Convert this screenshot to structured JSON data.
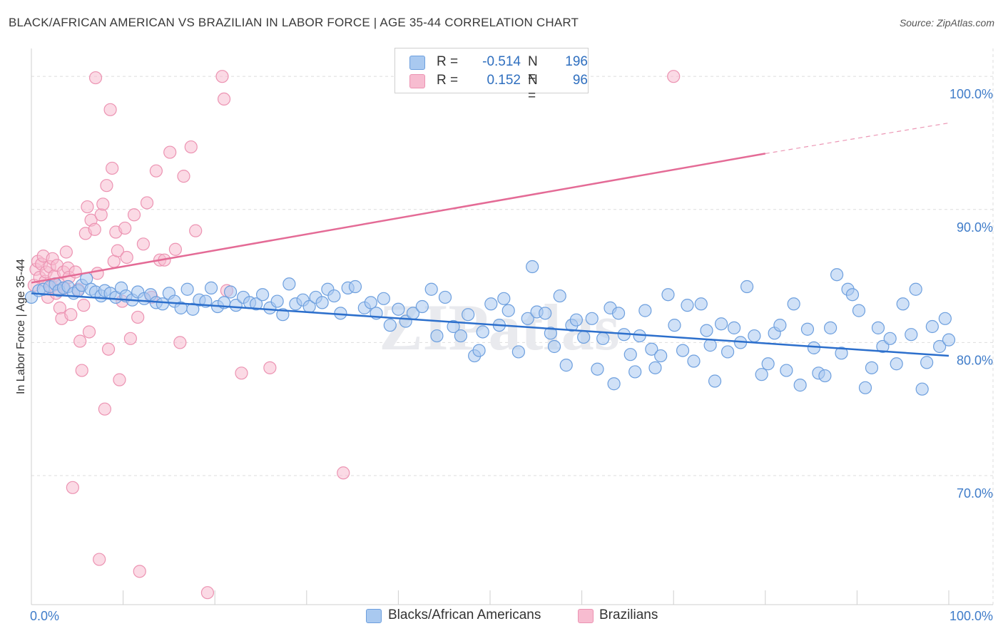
{
  "title": "BLACK/AFRICAN AMERICAN VS BRAZILIAN IN LABOR FORCE | AGE 35-44 CORRELATION CHART",
  "source": "Source: ZipAtlas.com",
  "watermark": "ZIPatlas",
  "colors": {
    "blue_fill": "#a9c9f0",
    "blue_stroke": "#6d9fde",
    "blue_line": "#2c6fcc",
    "pink_fill": "#f7bcd0",
    "pink_stroke": "#ec93b2",
    "pink_line": "#e46b96",
    "axis_text": "#3f7cc9",
    "grid": "#dddddd"
  },
  "legend": {
    "rows": [
      {
        "r_label": "R =",
        "r_value": "-0.514",
        "n_label": "N =",
        "n_value": "196"
      },
      {
        "r_label": "R =",
        "r_value": "0.152",
        "n_label": "N =",
        "n_value": "96"
      }
    ]
  },
  "bottom_legend": {
    "blue": "Blacks/African Americans",
    "pink": "Brazilians"
  },
  "chart_data": {
    "type": "scatter",
    "title": "BLACK/AFRICAN AMERICAN VS BRAZILIAN IN LABOR FORCE | AGE 35-44 CORRELATION CHART",
    "xlabel": "",
    "ylabel": "In Labor Force | Age 35-44",
    "xlim": [
      0,
      100
    ],
    "ylim": [
      60.3,
      102.1
    ],
    "x_tick_labels": [
      "0.0%",
      "100.0%"
    ],
    "y_ticks": [
      70,
      80,
      90,
      100
    ],
    "y_tick_labels": [
      "70.0%",
      "80.0%",
      "90.0%",
      "100.0%"
    ],
    "series": [
      {
        "name": "Blacks/African Americans",
        "r": -0.514,
        "n": 196,
        "trend": {
          "x0": 0,
          "y0": 83.7,
          "x1": 100,
          "y1": 79.0
        },
        "points": [
          [
            0,
            83.4
          ],
          [
            0.8,
            83.9
          ],
          [
            1.3,
            84.0
          ],
          [
            2,
            84.2
          ],
          [
            2.6,
            84.4
          ],
          [
            3,
            83.9
          ],
          [
            3.5,
            84.1
          ],
          [
            4,
            84.2
          ],
          [
            4.6,
            83.7
          ],
          [
            5.1,
            83.9
          ],
          [
            5.5,
            84.3
          ],
          [
            6,
            84.8
          ],
          [
            6.5,
            84.0
          ],
          [
            7,
            83.8
          ],
          [
            7.6,
            83.5
          ],
          [
            8,
            83.9
          ],
          [
            8.6,
            83.7
          ],
          [
            9.2,
            83.4
          ],
          [
            9.8,
            84.1
          ],
          [
            10.3,
            83.5
          ],
          [
            11,
            83.2
          ],
          [
            11.6,
            83.8
          ],
          [
            12.3,
            83.3
          ],
          [
            13,
            83.6
          ],
          [
            13.6,
            83.0
          ],
          [
            14.3,
            82.9
          ],
          [
            15,
            83.7
          ],
          [
            15.6,
            83.1
          ],
          [
            16.3,
            82.6
          ],
          [
            17,
            84.0
          ],
          [
            17.6,
            82.5
          ],
          [
            18.3,
            83.2
          ],
          [
            19,
            83.1
          ],
          [
            19.6,
            84.1
          ],
          [
            20.3,
            82.7
          ],
          [
            21,
            83.0
          ],
          [
            21.7,
            83.8
          ],
          [
            22.3,
            82.8
          ],
          [
            23.1,
            83.4
          ],
          [
            23.8,
            83.0
          ],
          [
            24.5,
            82.9
          ],
          [
            25.2,
            83.6
          ],
          [
            26,
            82.6
          ],
          [
            26.8,
            83.1
          ],
          [
            27.4,
            82.1
          ],
          [
            28.1,
            84.4
          ],
          [
            28.8,
            82.9
          ],
          [
            29.6,
            83.2
          ],
          [
            30.3,
            82.7
          ],
          [
            31,
            83.4
          ],
          [
            31.7,
            83.0
          ],
          [
            32.3,
            84.0
          ],
          [
            33,
            83.5
          ],
          [
            33.7,
            82.2
          ],
          [
            34.5,
            84.1
          ],
          [
            35.3,
            84.2
          ],
          [
            36.3,
            82.6
          ],
          [
            37,
            83.0
          ],
          [
            37.6,
            82.2
          ],
          [
            38.4,
            83.3
          ],
          [
            39.1,
            81.3
          ],
          [
            40,
            82.5
          ],
          [
            40.8,
            81.6
          ],
          [
            41.6,
            82.2
          ],
          [
            42.6,
            82.7
          ],
          [
            43.6,
            84.0
          ],
          [
            44.2,
            80.5
          ],
          [
            45.1,
            83.4
          ],
          [
            46,
            81.2
          ],
          [
            46.8,
            80.5
          ],
          [
            47.6,
            82.1
          ],
          [
            48.3,
            79.0
          ],
          [
            48.8,
            79.4
          ],
          [
            49.2,
            80.8
          ],
          [
            50.1,
            82.9
          ],
          [
            51,
            81.3
          ],
          [
            51.5,
            83.3
          ],
          [
            52,
            82.4
          ],
          [
            53.1,
            79.3
          ],
          [
            54.1,
            81.8
          ],
          [
            54.6,
            85.7
          ],
          [
            55.1,
            82.3
          ],
          [
            56,
            82.2
          ],
          [
            56.6,
            80.7
          ],
          [
            57,
            79.7
          ],
          [
            57.6,
            83.5
          ],
          [
            58.3,
            78.3
          ],
          [
            58.9,
            81.3
          ],
          [
            59.4,
            81.7
          ],
          [
            60.2,
            80.4
          ],
          [
            61.1,
            81.8
          ],
          [
            61.7,
            78.0
          ],
          [
            62.3,
            80.3
          ],
          [
            63.1,
            82.6
          ],
          [
            63.5,
            76.9
          ],
          [
            64,
            82.2
          ],
          [
            64.6,
            80.6
          ],
          [
            65.3,
            79.1
          ],
          [
            65.8,
            77.8
          ],
          [
            66.3,
            80.5
          ],
          [
            66.9,
            82.4
          ],
          [
            67.6,
            79.5
          ],
          [
            68,
            78.1
          ],
          [
            68.6,
            79.0
          ],
          [
            69.4,
            83.6
          ],
          [
            70.1,
            81.3
          ],
          [
            71,
            79.4
          ],
          [
            71.5,
            82.8
          ],
          [
            72.2,
            78.6
          ],
          [
            73,
            82.9
          ],
          [
            73.6,
            80.9
          ],
          [
            74,
            79.8
          ],
          [
            74.5,
            77.1
          ],
          [
            75.2,
            81.4
          ],
          [
            75.9,
            79.3
          ],
          [
            76.6,
            81.1
          ],
          [
            77.3,
            80.0
          ],
          [
            78,
            84.2
          ],
          [
            78.8,
            80.5
          ],
          [
            79.6,
            77.6
          ],
          [
            80.3,
            78.4
          ],
          [
            81,
            80.7
          ],
          [
            81.6,
            81.3
          ],
          [
            82.3,
            77.9
          ],
          [
            83.1,
            82.9
          ],
          [
            83.8,
            76.8
          ],
          [
            84.6,
            81.0
          ],
          [
            85.3,
            79.6
          ],
          [
            85.8,
            77.7
          ],
          [
            86.5,
            77.5
          ],
          [
            87.1,
            81.1
          ],
          [
            87.8,
            85.1
          ],
          [
            88.3,
            79.2
          ],
          [
            89,
            84.0
          ],
          [
            89.5,
            83.6
          ],
          [
            90.2,
            82.4
          ],
          [
            90.9,
            76.6
          ],
          [
            91.6,
            78.1
          ],
          [
            92.3,
            81.1
          ],
          [
            92.8,
            79.7
          ],
          [
            93.6,
            80.3
          ],
          [
            94.3,
            78.4
          ],
          [
            95,
            82.9
          ],
          [
            95.9,
            80.6
          ],
          [
            96.4,
            84.0
          ],
          [
            97.1,
            76.5
          ],
          [
            97.6,
            78.5
          ],
          [
            98.2,
            81.2
          ],
          [
            99,
            79.7
          ],
          [
            99.6,
            81.8
          ],
          [
            100,
            80.2
          ]
        ]
      },
      {
        "name": "Brazilians",
        "r": 0.152,
        "n": 96,
        "trend": {
          "x0": 0,
          "y0": 84.5,
          "x1": 80,
          "y1": 94.2,
          "dash_x1": 100,
          "dash_y1": 96.5
        },
        "points": [
          [
            0.3,
            84.3
          ],
          [
            0.5,
            85.5
          ],
          [
            0.7,
            86.1
          ],
          [
            0.9,
            84.9
          ],
          [
            1.1,
            85.9
          ],
          [
            1.3,
            86.5
          ],
          [
            1.5,
            84.6
          ],
          [
            1.6,
            85.3
          ],
          [
            1.8,
            83.4
          ],
          [
            2,
            85.7
          ],
          [
            2.2,
            84.2
          ],
          [
            2.3,
            86.3
          ],
          [
            2.5,
            85.0
          ],
          [
            2.7,
            83.7
          ],
          [
            2.8,
            85.8
          ],
          [
            3,
            84.4
          ],
          [
            3.1,
            82.6
          ],
          [
            3.3,
            81.8
          ],
          [
            3.5,
            85.3
          ],
          [
            3.6,
            84.1
          ],
          [
            3.8,
            86.8
          ],
          [
            4,
            85.6
          ],
          [
            4.1,
            84.9
          ],
          [
            4.3,
            82.1
          ],
          [
            4.5,
            69.1
          ],
          [
            4.8,
            85.3
          ],
          [
            5.1,
            84.0
          ],
          [
            5.3,
            80.1
          ],
          [
            5.5,
            77.9
          ],
          [
            5.7,
            82.8
          ],
          [
            5.9,
            88.2
          ],
          [
            6.1,
            90.2
          ],
          [
            6.3,
            80.8
          ],
          [
            6.5,
            89.2
          ],
          [
            6.9,
            88.5
          ],
          [
            7,
            99.9
          ],
          [
            7.2,
            85.2
          ],
          [
            7.4,
            63.7
          ],
          [
            7.6,
            89.6
          ],
          [
            7.8,
            90.4
          ],
          [
            8,
            75.0
          ],
          [
            8.2,
            91.8
          ],
          [
            8.4,
            79.5
          ],
          [
            8.6,
            97.5
          ],
          [
            8.8,
            93.1
          ],
          [
            9,
            86.1
          ],
          [
            9.2,
            88.3
          ],
          [
            9.4,
            86.9
          ],
          [
            9.6,
            77.2
          ],
          [
            9.9,
            83.1
          ],
          [
            10.2,
            88.6
          ],
          [
            10.4,
            86.4
          ],
          [
            10.8,
            80.3
          ],
          [
            11.2,
            89.6
          ],
          [
            11.6,
            81.9
          ],
          [
            11.8,
            62.8
          ],
          [
            12.2,
            87.4
          ],
          [
            12.6,
            90.5
          ],
          [
            13.1,
            83.4
          ],
          [
            13.6,
            92.9
          ],
          [
            14,
            86.2
          ],
          [
            14.5,
            86.2
          ],
          [
            15.1,
            94.3
          ],
          [
            15.7,
            87.0
          ],
          [
            16.2,
            80.0
          ],
          [
            16.6,
            92.5
          ],
          [
            17.4,
            94.7
          ],
          [
            17.9,
            88.4
          ],
          [
            19.2,
            61.2
          ],
          [
            20.8,
            100.0
          ],
          [
            21,
            98.3
          ],
          [
            21.3,
            83.9
          ],
          [
            22.9,
            77.7
          ],
          [
            26,
            78.1
          ],
          [
            34,
            70.2
          ],
          [
            70,
            100.0
          ]
        ]
      }
    ]
  }
}
